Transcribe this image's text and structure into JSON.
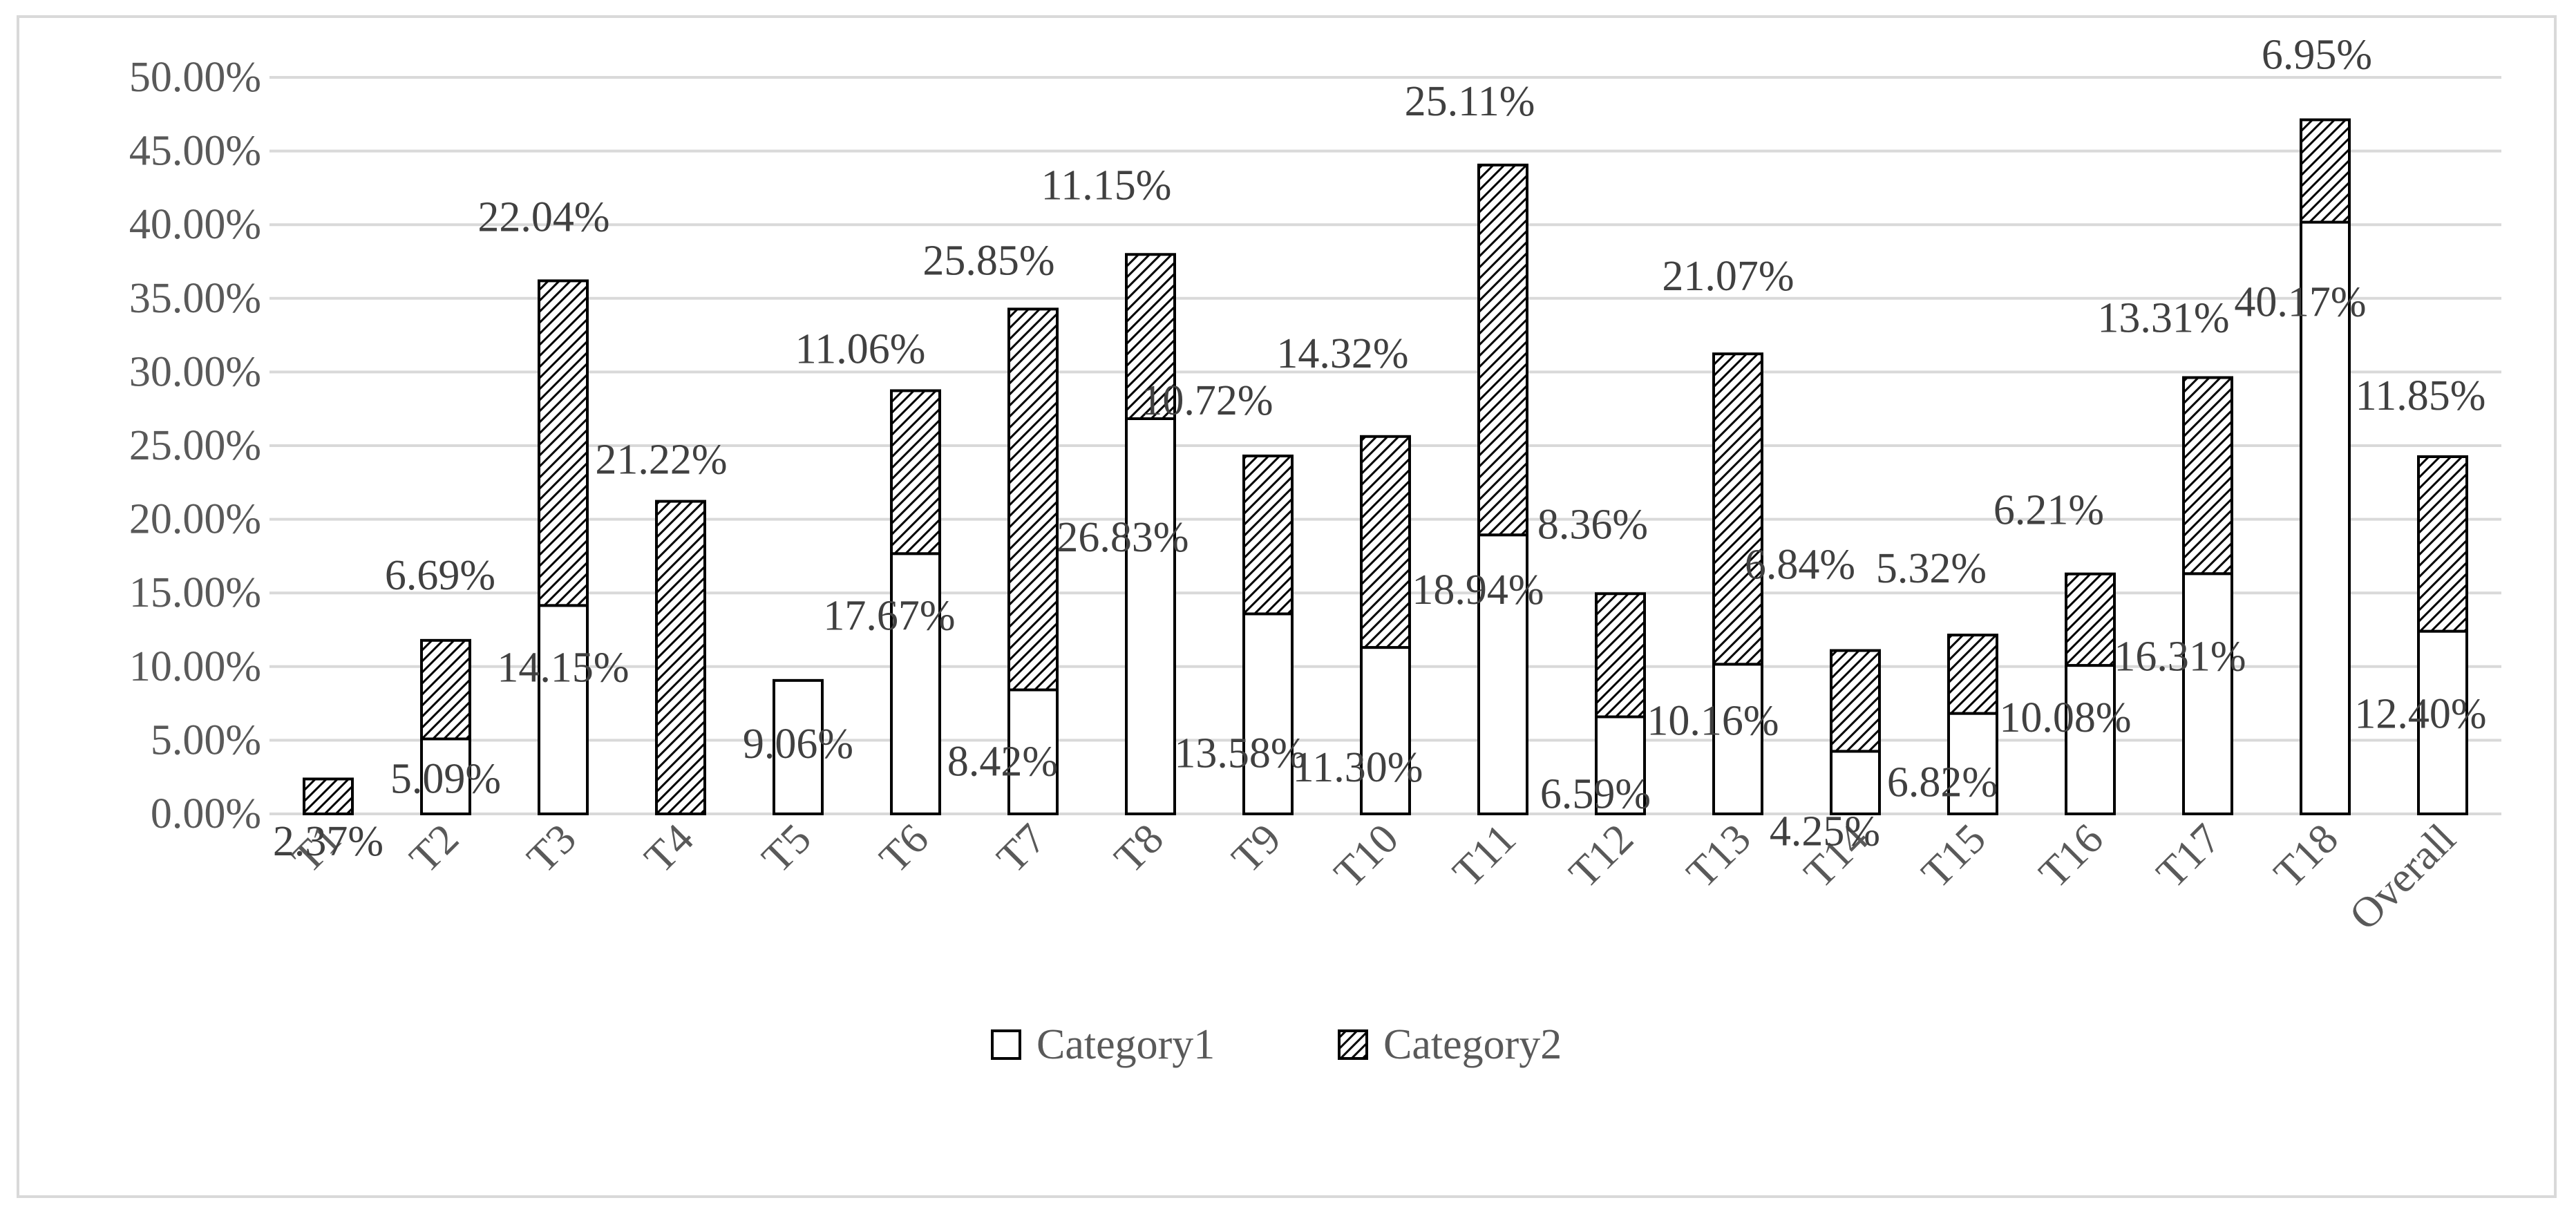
{
  "chart_data": {
    "type": "bar",
    "stacked": true,
    "categories": [
      "T1",
      "T2",
      "T3",
      "T4",
      "T5",
      "T6",
      "T7",
      "T8",
      "T9",
      "T10",
      "T11",
      "T12",
      "T13",
      "T14",
      "T15",
      "T16",
      "T17",
      "T18",
      "Overall"
    ],
    "series": [
      {
        "name": "Category1",
        "values": [
          0,
          5.09,
          14.15,
          0,
          9.06,
          17.67,
          8.42,
          26.83,
          13.58,
          11.3,
          18.94,
          6.59,
          10.16,
          4.25,
          6.82,
          10.08,
          16.31,
          40.17,
          12.4
        ],
        "labels": [
          "",
          "5.09%",
          "14.15%",
          "",
          "9.06%",
          "17.67%",
          "8.42%",
          "26.83%",
          "13.58%",
          "11.30%",
          "18.94%",
          "6.59%",
          "10.16%",
          "4.25%",
          "6.82%",
          "10.08%",
          "16.31%",
          "40.17%",
          "12.40%"
        ],
        "fill": "#ffffff",
        "pattern": "none"
      },
      {
        "name": "Category2",
        "values": [
          2.37,
          6.69,
          22.04,
          21.22,
          0,
          11.06,
          25.85,
          11.15,
          10.72,
          14.32,
          25.11,
          8.36,
          21.07,
          6.84,
          5.32,
          6.21,
          13.31,
          6.95,
          11.85
        ],
        "labels": [
          "2.37%",
          "6.69%",
          "22.04%",
          "21.22%",
          "",
          "11.06%",
          "25.85%",
          "11.15%",
          "10.72%",
          "14.32%",
          "25.11%",
          "8.36%",
          "21.07%",
          "6.84%",
          "5.32%",
          "6.21%",
          "13.31%",
          "6.95%",
          "11.85%"
        ],
        "fill": "#ffffff",
        "pattern": "diagonal-hatch"
      }
    ],
    "yticks": [
      "0.00%",
      "5.00%",
      "10.00%",
      "15.00%",
      "20.00%",
      "25.00%",
      "30.00%",
      "35.00%",
      "40.00%",
      "45.00%",
      "50.00%"
    ],
    "ylim": [
      0,
      50
    ],
    "grid": true,
    "legend": "bottom-center",
    "colors": {
      "bar_stroke": "#000000",
      "grid": "#d9d9d9",
      "text": "#595959"
    }
  }
}
